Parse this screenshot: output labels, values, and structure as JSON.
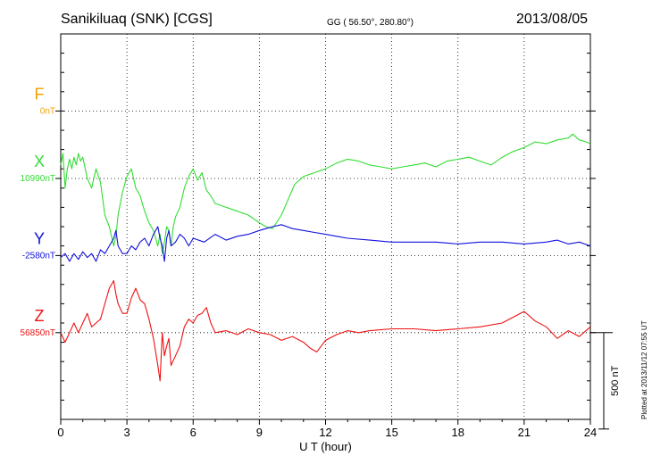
{
  "header": {
    "station": "Sanikiluaq (SNK)  [CGS]",
    "coords": "GG ( 56.50°, 280.80°)",
    "date": "2013/08/05"
  },
  "footer": {
    "plotted": "Plotted at 2013/11/12 07:55 UT"
  },
  "chart_data": {
    "type": "line",
    "xlabel": "U T (hour)",
    "xlim": [
      0,
      24
    ],
    "xticks": [
      0,
      3,
      6,
      9,
      12,
      15,
      18,
      21,
      24
    ],
    "ylim_nT": [
      -300,
      1700
    ],
    "grid": true,
    "scale_bar": {
      "label": "500 nT",
      "value": 500
    },
    "series": [
      {
        "name": "F",
        "baseline_label": "0nT",
        "color": "#f0a000",
        "offset_nT": 1300,
        "values": []
      },
      {
        "name": "X",
        "baseline_label": "10990nT",
        "color": "#33dd33",
        "offset_nT": 950,
        "x": [
          0,
          0.1,
          0.2,
          0.3,
          0.4,
          0.5,
          0.6,
          0.7,
          0.8,
          0.9,
          1,
          1.2,
          1.4,
          1.6,
          1.8,
          2,
          2.2,
          2.4,
          2.5,
          2.6,
          2.7,
          2.8,
          3,
          3.2,
          3.4,
          3.6,
          3.8,
          4,
          4.2,
          4.4,
          4.5,
          4.6,
          4.7,
          4.8,
          4.9,
          5,
          5.1,
          5.2,
          5.4,
          5.6,
          5.8,
          6,
          6.2,
          6.4,
          6.6,
          6.8,
          7,
          7.5,
          8,
          8.5,
          9,
          9.3,
          9.6,
          10,
          10.3,
          10.6,
          11,
          11.5,
          12,
          12.5,
          13,
          13.5,
          14,
          14.5,
          15,
          15.5,
          16,
          16.5,
          17,
          17.5,
          18,
          18.5,
          19,
          19.5,
          20,
          20.5,
          21,
          21.5,
          22,
          22.5,
          23,
          23.2,
          23.5,
          23.8,
          24
        ],
        "values": [
          1020,
          1080,
          900,
          1000,
          1050,
          1000,
          1060,
          1020,
          1080,
          1040,
          1060,
          950,
          900,
          1000,
          930,
          760,
          700,
          600,
          650,
          760,
          820,
          880,
          960,
          1000,
          900,
          860,
          780,
          720,
          680,
          600,
          660,
          560,
          620,
          700,
          680,
          600,
          700,
          750,
          800,
          900,
          960,
          1000,
          940,
          980,
          890,
          860,
          820,
          800,
          780,
          760,
          720,
          700,
          690,
          760,
          840,
          920,
          960,
          980,
          1000,
          1030,
          1050,
          1040,
          1020,
          1010,
          1000,
          1010,
          1020,
          1030,
          1010,
          1040,
          1050,
          1060,
          1040,
          1020,
          1060,
          1090,
          1110,
          1140,
          1130,
          1150,
          1160,
          1180,
          1150,
          1140,
          1130
        ]
      },
      {
        "name": "Y",
        "baseline_label": "-2580nT",
        "color": "#1010dd",
        "offset_nT": 550,
        "x": [
          0,
          0.2,
          0.4,
          0.6,
          0.8,
          1,
          1.2,
          1.4,
          1.6,
          1.8,
          2,
          2.2,
          2.4,
          2.5,
          2.6,
          2.8,
          3,
          3.2,
          3.4,
          3.6,
          3.8,
          4,
          4.2,
          4.4,
          4.5,
          4.6,
          4.7,
          4.8,
          4.9,
          5,
          5.2,
          5.4,
          5.6,
          5.8,
          6,
          6.5,
          7,
          7.5,
          8,
          8.5,
          9,
          9.3,
          9.6,
          10,
          10.5,
          11,
          11.5,
          12,
          12.5,
          13,
          14,
          15,
          16,
          17,
          18,
          19,
          20,
          21,
          22,
          22.5,
          23,
          23.5,
          24
        ],
        "values": [
          540,
          560,
          520,
          560,
          530,
          570,
          540,
          560,
          520,
          580,
          560,
          600,
          640,
          680,
          600,
          560,
          560,
          600,
          580,
          620,
          640,
          600,
          660,
          700,
          640,
          600,
          520,
          640,
          680,
          600,
          620,
          660,
          640,
          600,
          640,
          620,
          660,
          630,
          650,
          660,
          680,
          690,
          700,
          710,
          690,
          680,
          670,
          660,
          650,
          640,
          630,
          620,
          620,
          620,
          610,
          620,
          620,
          610,
          620,
          630,
          610,
          620,
          600
        ]
      },
      {
        "name": "Z",
        "baseline_label": "56850nT",
        "color": "#ee1111",
        "offset_nT": 150,
        "x": [
          0,
          0.2,
          0.4,
          0.6,
          0.8,
          1,
          1.2,
          1.4,
          1.6,
          1.8,
          2,
          2.2,
          2.4,
          2.5,
          2.6,
          2.8,
          3,
          3.2,
          3.4,
          3.6,
          3.8,
          4,
          4.2,
          4.4,
          4.5,
          4.6,
          4.7,
          4.8,
          4.9,
          5,
          5.2,
          5.4,
          5.6,
          5.8,
          6,
          6.2,
          6.4,
          6.6,
          6.8,
          7,
          7.5,
          8,
          8.5,
          9,
          9.5,
          10,
          10.5,
          11,
          11.3,
          11.6,
          12,
          12.5,
          13,
          13.5,
          14,
          15,
          16,
          17,
          18,
          19,
          20,
          20.5,
          21,
          21.5,
          22,
          22.5,
          23,
          23.5,
          24
        ],
        "values": [
          150,
          100,
          150,
          200,
          150,
          200,
          250,
          180,
          200,
          220,
          300,
          380,
          420,
          350,
          300,
          250,
          250,
          330,
          380,
          320,
          300,
          220,
          120,
          -20,
          -100,
          150,
          30,
          80,
          120,
          -20,
          30,
          80,
          180,
          220,
          200,
          240,
          250,
          280,
          200,
          150,
          160,
          140,
          170,
          150,
          140,
          110,
          130,
          100,
          70,
          50,
          110,
          140,
          160,
          150,
          160,
          170,
          170,
          160,
          170,
          180,
          200,
          230,
          260,
          210,
          180,
          120,
          160,
          130,
          180
        ]
      }
    ]
  }
}
